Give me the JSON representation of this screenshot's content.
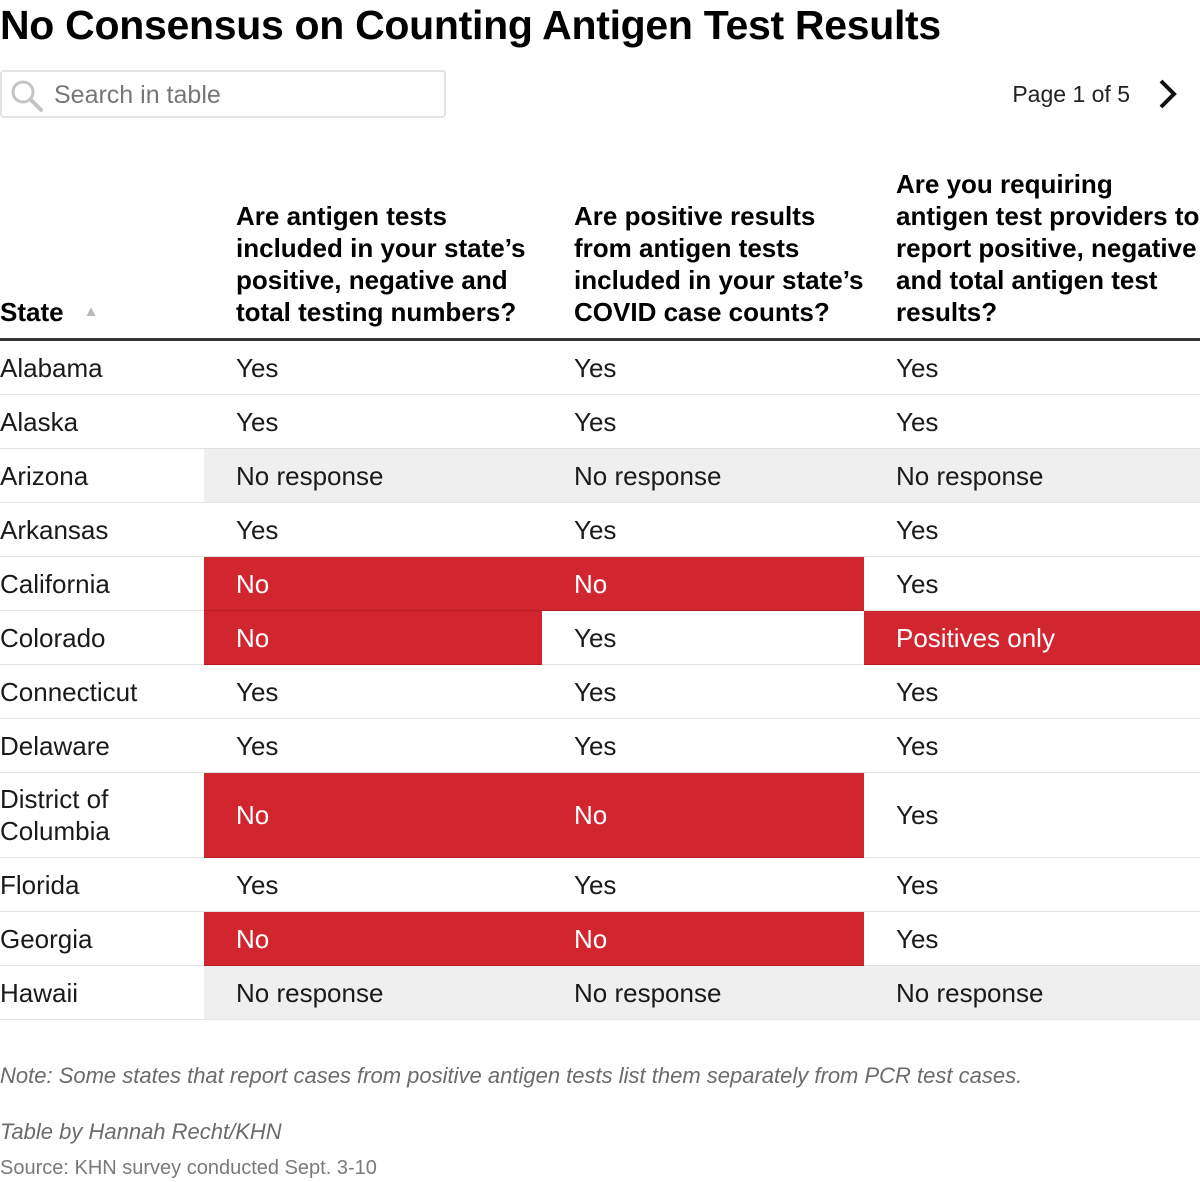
{
  "title": "No Consensus on Counting Antigen Test Results",
  "search": {
    "placeholder": "Search in table",
    "value": ""
  },
  "pagination": {
    "label": "Page 1 of 5",
    "current_page": 1,
    "total_pages": 5
  },
  "icons": {
    "search": "search-icon",
    "next": "chevron-right-icon",
    "sort": "sort-ascending-icon"
  },
  "colors": {
    "no": "#d1252f",
    "no_response": "#efefef",
    "text": "#1a1a1a",
    "header_rule": "#333333"
  },
  "chart_data": {
    "type": "table",
    "title": "No Consensus on Counting Antigen Test Results",
    "columns": [
      "State",
      "Are antigen tests included in your state’s positive, negative and total testing numbers?",
      "Are positive results from antigen tests included in your state’s COVID case counts?",
      "Are you requiring antigen test providers to report positive, negative and total antigen test results?"
    ],
    "sort": {
      "column": "State",
      "direction": "ascending"
    },
    "rows": [
      [
        "Alabama",
        "Yes",
        "Yes",
        "Yes"
      ],
      [
        "Alaska",
        "Yes",
        "Yes",
        "Yes"
      ],
      [
        "Arizona",
        "No response",
        "No response",
        "No response"
      ],
      [
        "Arkansas",
        "Yes",
        "Yes",
        "Yes"
      ],
      [
        "California",
        "No",
        "No",
        "Yes"
      ],
      [
        "Colorado",
        "No",
        "Yes",
        "Positives only"
      ],
      [
        "Connecticut",
        "Yes",
        "Yes",
        "Yes"
      ],
      [
        "Delaware",
        "Yes",
        "Yes",
        "Yes"
      ],
      [
        "District of Columbia",
        "No",
        "No",
        "Yes"
      ],
      [
        "Florida",
        "Yes",
        "Yes",
        "Yes"
      ],
      [
        "Georgia",
        "No",
        "No",
        "Yes"
      ],
      [
        "Hawaii",
        "No response",
        "No response",
        "No response"
      ]
    ]
  },
  "note": "Note: Some states that report cases from positive antigen tests list them separately from PCR test cases.",
  "byline": "Table by Hannah Recht/KHN",
  "source": "Source: KHN survey conducted Sept. 3-10"
}
